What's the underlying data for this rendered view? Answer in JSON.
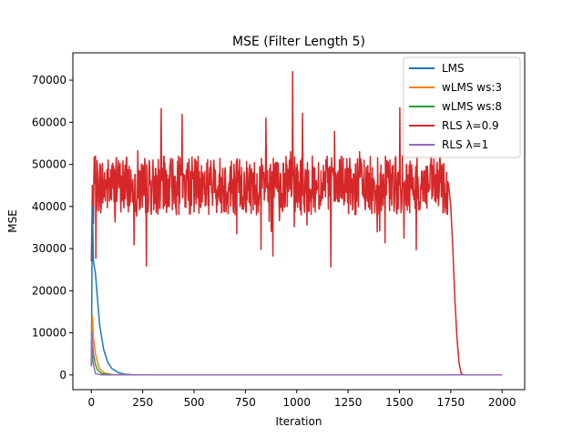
{
  "chart_data": {
    "type": "line",
    "title": "MSE (Filter Length 5)",
    "xlabel": "Iteration",
    "ylabel": "MSE",
    "xlim": [
      -90,
      2110
    ],
    "ylim": [
      -3500,
      76500
    ],
    "xticks": [
      0,
      250,
      500,
      750,
      1000,
      1250,
      1500,
      1750,
      2000
    ],
    "xtick_labels": [
      "0",
      "250",
      "500",
      "750",
      "1000",
      "1250",
      "1500",
      "1750",
      "2000"
    ],
    "yticks": [
      0,
      10000,
      20000,
      30000,
      40000,
      50000,
      60000,
      70000
    ],
    "ytick_labels": [
      "0",
      "10000",
      "20000",
      "30000",
      "40000",
      "50000",
      "60000",
      "70000"
    ],
    "grid": false,
    "legend_position": "top-right",
    "series": [
      {
        "name": "LMS",
        "color": "#1f77b4",
        "points": [
          [
            0,
            2500
          ],
          [
            5,
            40000
          ],
          [
            10,
            27000
          ],
          [
            20,
            24000
          ],
          [
            30,
            18000
          ],
          [
            40,
            12000
          ],
          [
            50,
            9000
          ],
          [
            60,
            6000
          ],
          [
            70,
            4500
          ],
          [
            80,
            3000
          ],
          [
            100,
            1500
          ],
          [
            130,
            600
          ],
          [
            160,
            200
          ],
          [
            200,
            50
          ],
          [
            300,
            0
          ],
          [
            2000,
            0
          ]
        ]
      },
      {
        "name": "wLMS ws:3",
        "color": "#ff7f0e",
        "points": [
          [
            0,
            2500
          ],
          [
            5,
            14000
          ],
          [
            10,
            9000
          ],
          [
            20,
            5000
          ],
          [
            30,
            3000
          ],
          [
            40,
            1500
          ],
          [
            60,
            500
          ],
          [
            100,
            100
          ],
          [
            200,
            0
          ],
          [
            2000,
            0
          ]
        ]
      },
      {
        "name": "wLMS ws:8",
        "color": "#2ca02c",
        "points": [
          [
            0,
            2500
          ],
          [
            5,
            8000
          ],
          [
            10,
            5000
          ],
          [
            20,
            2500
          ],
          [
            30,
            1200
          ],
          [
            50,
            300
          ],
          [
            100,
            50
          ],
          [
            200,
            0
          ],
          [
            2000,
            0
          ]
        ]
      },
      {
        "name": "RLS λ=0.9",
        "color": "#d62728",
        "mean": 45000,
        "noise_amplitude": 7000,
        "noise_seed": 7,
        "spike": [
          980,
          72000
        ],
        "decay": [
          [
            1740,
            45000
          ],
          [
            1750,
            40000
          ],
          [
            1760,
            30000
          ],
          [
            1770,
            18000
          ],
          [
            1780,
            9000
          ],
          [
            1790,
            3000
          ],
          [
            1800,
            500
          ],
          [
            1810,
            0
          ],
          [
            2000,
            0
          ]
        ],
        "points": [
          [
            0,
            27000
          ],
          [
            5,
            45000
          ],
          [
            10,
            36000
          ]
        ]
      },
      {
        "name": "RLS λ=1",
        "color": "#9467bd",
        "points": [
          [
            0,
            2000
          ],
          [
            3,
            10000
          ],
          [
            8,
            3000
          ],
          [
            20,
            300
          ],
          [
            50,
            0
          ],
          [
            2000,
            0
          ]
        ]
      }
    ]
  }
}
